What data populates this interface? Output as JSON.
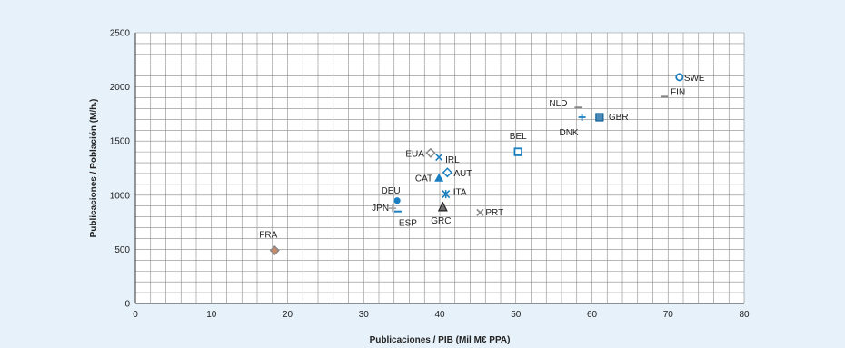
{
  "chart_data": {
    "type": "scatter",
    "xlabel": "Publicaciones / PIB (Mil M€ PPA)",
    "ylabel": "Publicaciones / Población (M/h.)",
    "xlim": [
      0,
      80
    ],
    "ylim": [
      0,
      2500
    ],
    "x_ticks": [
      0,
      10,
      20,
      30,
      40,
      50,
      60,
      70,
      80
    ],
    "y_ticks": [
      0,
      500,
      1000,
      1500,
      2000,
      2500
    ],
    "grid": true,
    "minor_grid_x": 2,
    "minor_grid_y": 100,
    "points": [
      {
        "label": "SWE",
        "x": 71.5,
        "y": 2090,
        "marker": "circle-open",
        "color": "#1a7fc0"
      },
      {
        "label": "FIN",
        "x": 69.5,
        "y": 1910,
        "marker": "dash",
        "color": "#888888"
      },
      {
        "label": "NLD",
        "x": 58.2,
        "y": 1810,
        "marker": "dash",
        "color": "#888888"
      },
      {
        "label": "DNK",
        "x": 58.7,
        "y": 1720,
        "marker": "plus",
        "color": "#1a7fc0"
      },
      {
        "label": "GBR",
        "x": 61.0,
        "y": 1720,
        "marker": "square-filled",
        "color": "#4a8ab8"
      },
      {
        "label": "BEL",
        "x": 50.3,
        "y": 1400,
        "marker": "square-open",
        "color": "#1a7fc0"
      },
      {
        "label": "EUA",
        "x": 38.8,
        "y": 1390,
        "marker": "diamond-open",
        "color": "#888888"
      },
      {
        "label": "IRL",
        "x": 39.9,
        "y": 1350,
        "marker": "x",
        "color": "#1a7fc0"
      },
      {
        "label": "AUT",
        "x": 41.0,
        "y": 1210,
        "marker": "diamond-open",
        "color": "#1a7fc0"
      },
      {
        "label": "CAT",
        "x": 39.9,
        "y": 1160,
        "marker": "triangle-filled",
        "color": "#1a7fc0"
      },
      {
        "label": "ITA",
        "x": 40.8,
        "y": 1010,
        "marker": "asterisk",
        "color": "#1a7fc0"
      },
      {
        "label": "DEU",
        "x": 34.4,
        "y": 950,
        "marker": "circle-filled",
        "color": "#1a7fc0"
      },
      {
        "label": "GRC",
        "x": 40.4,
        "y": 890,
        "marker": "triangle-dark",
        "color": "#222222"
      },
      {
        "label": "JPN",
        "x": 33.8,
        "y": 880,
        "marker": "plus",
        "color": "#aaaaaa"
      },
      {
        "label": "ESP",
        "x": 34.5,
        "y": 850,
        "marker": "dash",
        "color": "#1a7fc0"
      },
      {
        "label": "PRT",
        "x": 45.3,
        "y": 840,
        "marker": "x",
        "color": "#888888"
      },
      {
        "label": "FRA",
        "x": 18.3,
        "y": 490,
        "marker": "diamond-filled",
        "color": "#888888"
      }
    ]
  }
}
